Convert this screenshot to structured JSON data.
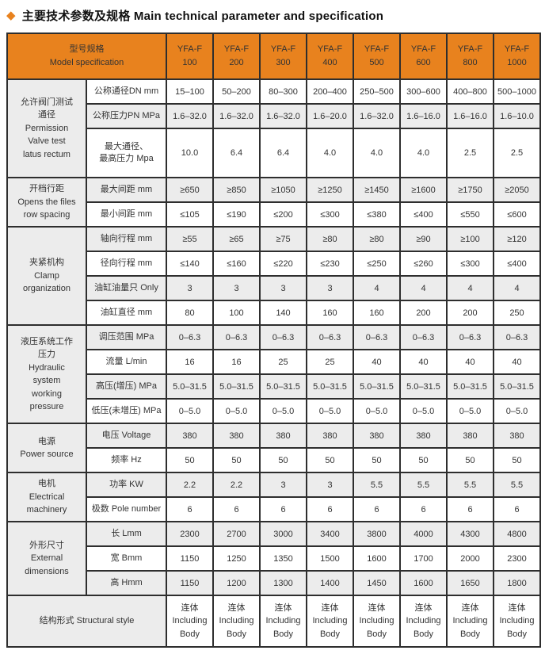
{
  "title": {
    "diamond": "◆",
    "text": "主要技术参数及规格 Main technical parameter and specification"
  },
  "colors": {
    "accent_orange": "#E8821E",
    "row_shade": "#ECECEC",
    "border": "#2E2E2E",
    "header_text": "#FFFFFF"
  },
  "header": {
    "model_label_zh": "型号规格",
    "model_label_en": "Model specification",
    "models": [
      {
        "name": "YFA-F",
        "size": "100"
      },
      {
        "name": "YFA-F",
        "size": "200"
      },
      {
        "name": "YFA-F",
        "size": "300"
      },
      {
        "name": "YFA-F",
        "size": "400"
      },
      {
        "name": "YFA-F",
        "size": "500"
      },
      {
        "name": "YFA-F",
        "size": "600"
      },
      {
        "name": "YFA-F",
        "size": "800"
      },
      {
        "name": "YFA-F",
        "size": "1000"
      }
    ]
  },
  "groups": [
    {
      "label_lines": [
        "允许阀门测试",
        "通径",
        "Permission",
        "Valve test",
        "latus rectum"
      ],
      "rows": [
        {
          "param_lines": [
            "公称通径DN mm"
          ],
          "values": [
            "15–100",
            "50–200",
            "80–300",
            "200–400",
            "250–500",
            "300–600",
            "400–800",
            "500–1000"
          ]
        },
        {
          "param_lines": [
            "公称压力PN MPa"
          ],
          "values": [
            "1.6–32.0",
            "1.6–32.0",
            "1.6–32.0",
            "1.6–20.0",
            "1.6–32.0",
            "1.6–16.0",
            "1.6–16.0",
            "1.6–10.0"
          ]
        },
        {
          "param_lines": [
            "最大通径、",
            "最高压力 Mpa"
          ],
          "tall": true,
          "values": [
            "10.0",
            "6.4",
            "6.4",
            "4.0",
            "4.0",
            "4.0",
            "2.5",
            "2.5"
          ]
        }
      ]
    },
    {
      "label_lines": [
        "开档行距",
        "Opens the files",
        "row spacing"
      ],
      "rows": [
        {
          "param_lines": [
            "最大间距 mm"
          ],
          "values": [
            "≥650",
            "≥850",
            "≥1050",
            "≥1250",
            "≥1450",
            "≥1600",
            "≥1750",
            "≥2050"
          ]
        },
        {
          "param_lines": [
            "最小间距 mm"
          ],
          "values": [
            "≤105",
            "≤190",
            "≤200",
            "≤300",
            "≤380",
            "≤400",
            "≤550",
            "≤600"
          ]
        }
      ]
    },
    {
      "label_lines": [
        "夹紧机构",
        "Clamp",
        "organization"
      ],
      "rows": [
        {
          "param_lines": [
            "轴向行程 mm"
          ],
          "values": [
            "≥55",
            "≥65",
            "≥75",
            "≥80",
            "≥80",
            "≥90",
            "≥100",
            "≥120"
          ]
        },
        {
          "param_lines": [
            "径向行程 mm"
          ],
          "values": [
            "≤140",
            "≤160",
            "≤220",
            "≤230",
            "≤250",
            "≤260",
            "≤300",
            "≤400"
          ]
        },
        {
          "param_lines": [
            "油缸油量只 Only"
          ],
          "values": [
            "3",
            "3",
            "3",
            "3",
            "4",
            "4",
            "4",
            "4"
          ]
        },
        {
          "param_lines": [
            "油缸直径 mm"
          ],
          "values": [
            "80",
            "100",
            "140",
            "160",
            "160",
            "200",
            "200",
            "250"
          ]
        }
      ]
    },
    {
      "label_lines": [
        "液压系统工作",
        "压力",
        "Hydraulic",
        "system",
        "working",
        "pressure"
      ],
      "rows": [
        {
          "param_lines": [
            "调压范围 MPa"
          ],
          "values": [
            "0–6.3",
            "0–6.3",
            "0–6.3",
            "0–6.3",
            "0–6.3",
            "0–6.3",
            "0–6.3",
            "0–6.3"
          ]
        },
        {
          "param_lines": [
            "流量 L/min"
          ],
          "values": [
            "16",
            "16",
            "25",
            "25",
            "40",
            "40",
            "40",
            "40"
          ]
        },
        {
          "param_lines": [
            "高压(增压) MPa"
          ],
          "values": [
            "5.0–31.5",
            "5.0–31.5",
            "5.0–31.5",
            "5.0–31.5",
            "5.0–31.5",
            "5.0–31.5",
            "5.0–31.5",
            "5.0–31.5"
          ]
        },
        {
          "param_lines": [
            "低压(未增压) MPa"
          ],
          "values": [
            "0–5.0",
            "0–5.0",
            "0–5.0",
            "0–5.0",
            "0–5.0",
            "0–5.0",
            "0–5.0",
            "0–5.0"
          ]
        }
      ]
    },
    {
      "label_lines": [
        "电源",
        "Power source"
      ],
      "rows": [
        {
          "param_lines": [
            "电压 Voltage"
          ],
          "values": [
            "380",
            "380",
            "380",
            "380",
            "380",
            "380",
            "380",
            "380"
          ]
        },
        {
          "param_lines": [
            "频率 Hz"
          ],
          "values": [
            "50",
            "50",
            "50",
            "50",
            "50",
            "50",
            "50",
            "50"
          ]
        }
      ]
    },
    {
      "label_lines": [
        "电机",
        "Electrical",
        "machinery"
      ],
      "rows": [
        {
          "param_lines": [
            "功率 KW"
          ],
          "values": [
            "2.2",
            "2.2",
            "3",
            "3",
            "5.5",
            "5.5",
            "5.5",
            "5.5"
          ]
        },
        {
          "param_lines": [
            "极数 Pole number"
          ],
          "values": [
            "6",
            "6",
            "6",
            "6",
            "6",
            "6",
            "6",
            "6"
          ]
        }
      ]
    },
    {
      "label_lines": [
        "外形尺寸",
        "External",
        "dimensions"
      ],
      "rows": [
        {
          "param_lines": [
            "长 Lmm"
          ],
          "values": [
            "2300",
            "2700",
            "3000",
            "3400",
            "3800",
            "4000",
            "4300",
            "4800"
          ]
        },
        {
          "param_lines": [
            "宽 Bmm"
          ],
          "values": [
            "1150",
            "1250",
            "1350",
            "1500",
            "1600",
            "1700",
            "2000",
            "2300"
          ]
        },
        {
          "param_lines": [
            "高 Hmm"
          ],
          "values": [
            "1150",
            "1200",
            "1300",
            "1400",
            "1450",
            "1600",
            "1650",
            "1800"
          ]
        }
      ]
    }
  ],
  "footer": {
    "label": "结构形式 Structural style",
    "cells": [
      [
        "连体",
        "Including",
        "Body"
      ],
      [
        "连体",
        "Including",
        "Body"
      ],
      [
        "连体",
        "Including",
        "Body"
      ],
      [
        "连体",
        "Including",
        "Body"
      ],
      [
        "连体",
        "Including",
        "Body"
      ],
      [
        "连体",
        "Including",
        "Body"
      ],
      [
        "连体",
        "Including",
        "Body"
      ],
      [
        "连体",
        "Including",
        "Body"
      ]
    ]
  }
}
